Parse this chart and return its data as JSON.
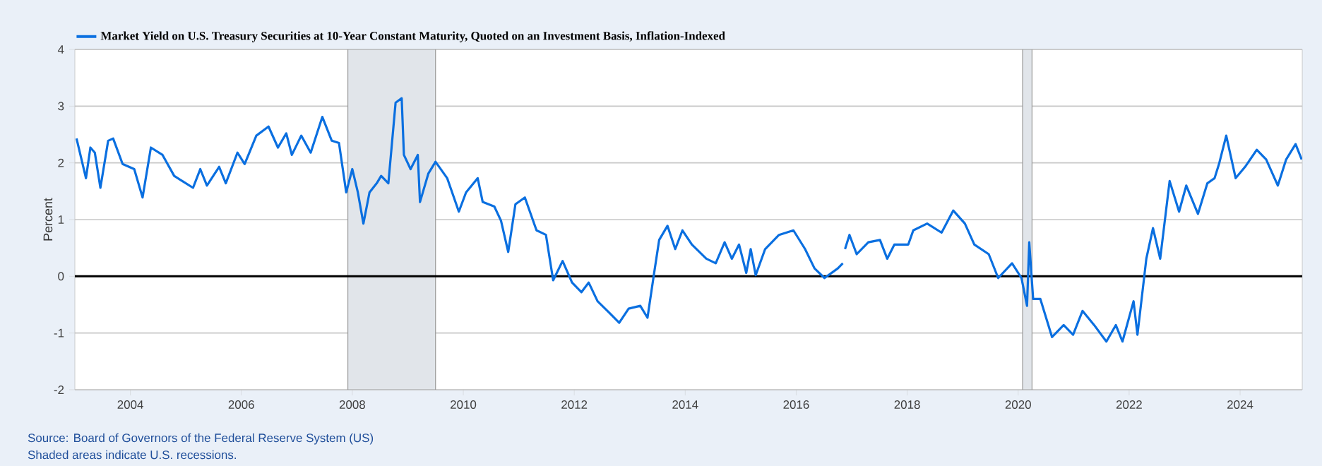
{
  "chart_data": {
    "type": "line",
    "ylabel": "Percent",
    "annotations": [
      "Source: Board of Governors of the Federal Reserve System (US)",
      "Shaded areas indicate U.S. recessions."
    ],
    "legend": "top left",
    "grid": "y",
    "xlim": [
      2003.0,
      2025.12
    ],
    "xticks": [
      2004,
      2006,
      2008,
      2010,
      2012,
      2014,
      2016,
      2018,
      2020,
      2022,
      2024
    ],
    "ylim": [
      -2,
      4
    ],
    "yticks": [
      -2,
      -1,
      0,
      1,
      2,
      3,
      4
    ],
    "ref_lines": [
      {
        "axis": "y",
        "value": 0,
        "color": "#000000"
      }
    ],
    "bands": [
      {
        "axis": "x",
        "from": 2007.92,
        "to": 2009.5,
        "color": "#e1e5ea"
      },
      {
        "axis": "x",
        "from": 2020.08,
        "to": 2020.25,
        "color": "#e1e5ea"
      }
    ],
    "series": [
      {
        "name": "Market Yield on U.S. Treasury Securities at 10-Year Constant Maturity, Quoted on an Investment Basis, Inflation-Indexed",
        "color": "#0a6fe0",
        "x": [
          2003.03,
          2003.2,
          2003.28,
          2003.36,
          2003.46,
          2003.6,
          2003.69,
          2003.86,
          2004.07,
          2004.22,
          2004.37,
          2004.58,
          2004.79,
          2005.13,
          2005.26,
          2005.38,
          2005.6,
          2005.72,
          2005.93,
          2006.06,
          2006.27,
          2006.49,
          2006.66,
          2006.81,
          2006.91,
          2007.08,
          2007.25,
          2007.46,
          2007.63,
          2007.76,
          2007.89,
          2008.0,
          2008.1,
          2008.2,
          2008.31,
          2008.44,
          2008.52,
          2008.65,
          2008.78,
          2008.89,
          2008.93,
          2009.05,
          2009.18,
          2009.22,
          2009.37,
          2009.5,
          2009.71,
          2009.92,
          2010.05,
          2010.26,
          2010.35,
          2010.56,
          2010.68,
          2010.81,
          2010.94,
          2011.11,
          2011.32,
          2011.49,
          2011.62,
          2011.79,
          2011.96,
          2012.13,
          2012.26,
          2012.42,
          2012.64,
          2012.81,
          2012.98,
          2013.19,
          2013.32,
          2013.44,
          2013.53,
          2013.68,
          2013.82,
          2013.95,
          2014.12,
          2014.38,
          2014.55,
          2014.71,
          2014.84,
          2014.97,
          2015.1,
          2015.18,
          2015.27,
          2015.44,
          2015.69,
          2015.95,
          2016.16,
          2016.33,
          2016.51,
          2016.75,
          2016.84,
          2016.86,
          2016.88,
          2016.96,
          2017.09,
          2017.3,
          2017.51,
          2017.64,
          2017.77,
          2018.02,
          2018.11,
          2018.36,
          2018.62,
          2018.83,
          2019.04,
          2019.21,
          2019.47,
          2019.64,
          2019.89,
          2020.06,
          2020.16,
          2020.2,
          2020.27,
          2020.4,
          2020.61,
          2020.82,
          2020.99,
          2021.16,
          2021.37,
          2021.59,
          2021.76,
          2021.88,
          2022.08,
          2022.15,
          2022.31,
          2022.43,
          2022.56,
          2022.73,
          2022.9,
          2023.03,
          2023.24,
          2023.41,
          2023.54,
          2023.62,
          2023.75,
          2023.92,
          2024.09,
          2024.3,
          2024.47,
          2024.68,
          2024.83,
          2025.0,
          2025.11
        ],
        "values": [
          2.43,
          1.73,
          2.27,
          2.18,
          1.56,
          2.39,
          2.43,
          1.98,
          1.89,
          1.39,
          2.27,
          2.14,
          1.77,
          1.56,
          1.89,
          1.6,
          1.93,
          1.64,
          2.18,
          1.98,
          2.48,
          2.64,
          2.27,
          2.52,
          2.14,
          2.48,
          2.18,
          2.81,
          2.39,
          2.35,
          1.48,
          1.89,
          1.48,
          0.93,
          1.48,
          1.64,
          1.77,
          1.64,
          3.06,
          3.14,
          2.14,
          1.89,
          2.14,
          1.31,
          1.81,
          2.02,
          1.73,
          1.14,
          1.48,
          1.73,
          1.31,
          1.23,
          0.98,
          0.43,
          1.27,
          1.39,
          0.81,
          0.73,
          -0.07,
          0.27,
          -0.11,
          -0.28,
          -0.11,
          -0.44,
          -0.65,
          -0.82,
          -0.57,
          -0.52,
          -0.73,
          0.06,
          0.64,
          0.89,
          0.48,
          0.81,
          0.56,
          0.31,
          0.23,
          0.6,
          0.31,
          0.56,
          0.06,
          0.48,
          0.02,
          0.48,
          0.73,
          0.81,
          0.48,
          0.14,
          -0.03,
          0.14,
          0.23,
          null,
          0.48,
          0.73,
          0.39,
          0.6,
          0.64,
          0.31,
          0.56,
          0.56,
          0.81,
          0.93,
          0.77,
          1.16,
          0.93,
          0.56,
          0.39,
          -0.03,
          0.23,
          -0.03,
          -0.52,
          0.6,
          -0.4,
          -0.4,
          -1.07,
          -0.86,
          -1.03,
          -0.61,
          -0.86,
          -1.15,
          -0.86,
          -1.15,
          -0.44,
          -1.03,
          0.31,
          0.85,
          0.31,
          1.68,
          1.14,
          1.6,
          1.1,
          1.64,
          1.73,
          1.98,
          2.48,
          1.73,
          1.93,
          2.23,
          2.06,
          1.6,
          2.06,
          2.33,
          2.06
        ]
      }
    ]
  }
}
